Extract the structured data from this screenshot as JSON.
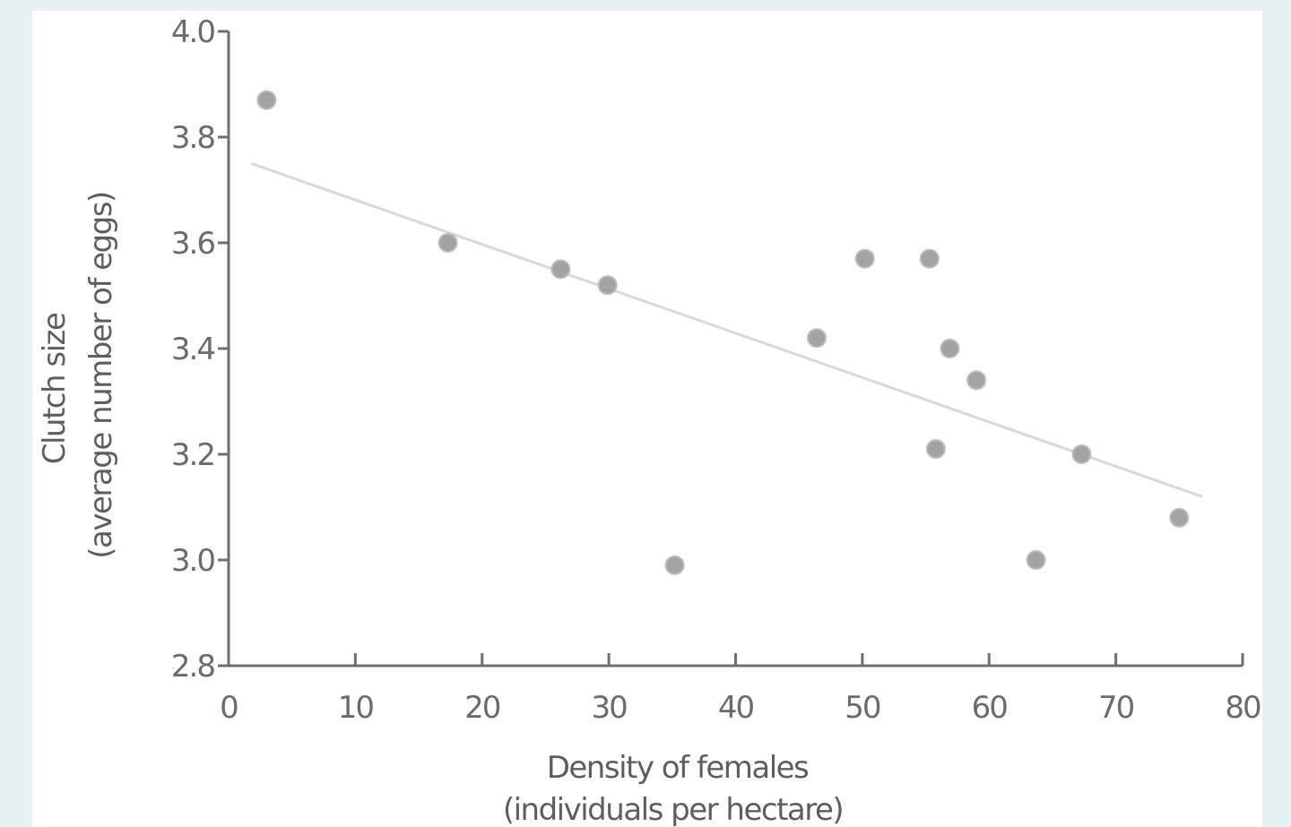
{
  "chart_data": {
    "type": "scatter",
    "title": "",
    "xlabel": [
      "Density of females",
      "(individuals per hectare)"
    ],
    "ylabel": [
      "Clutch size",
      "(average number of eggs)"
    ],
    "xlim": [
      0,
      80
    ],
    "ylim": [
      2.8,
      4.0
    ],
    "x_ticks": [
      0,
      10,
      20,
      30,
      40,
      50,
      60,
      70,
      80
    ],
    "y_ticks": [
      2.8,
      3.0,
      3.2,
      3.4,
      3.6,
      3.8,
      4.0
    ],
    "x_tick_labels": [
      "0",
      "10",
      "20",
      "30",
      "40",
      "50",
      "60",
      "70",
      "80"
    ],
    "y_tick_labels": [
      "2.8",
      "3.0",
      "3.2",
      "3.4",
      "3.6",
      "3.8",
      "4.0"
    ],
    "grid": false,
    "points": [
      {
        "x": 3,
        "y": 3.87
      },
      {
        "x": 17.3,
        "y": 3.6
      },
      {
        "x": 26.2,
        "y": 3.55
      },
      {
        "x": 29.9,
        "y": 3.52
      },
      {
        "x": 35.2,
        "y": 2.99
      },
      {
        "x": 46.4,
        "y": 3.42
      },
      {
        "x": 50.2,
        "y": 3.57
      },
      {
        "x": 55.3,
        "y": 3.57
      },
      {
        "x": 55.8,
        "y": 3.21
      },
      {
        "x": 56.9,
        "y": 3.4
      },
      {
        "x": 59.0,
        "y": 3.34
      },
      {
        "x": 63.7,
        "y": 3.0
      },
      {
        "x": 67.3,
        "y": 3.2
      },
      {
        "x": 75.0,
        "y": 3.08
      }
    ],
    "trendline": {
      "x": [
        1.8,
        76.8
      ],
      "y": [
        3.75,
        3.12
      ]
    },
    "colors": {
      "points": "#a3a3a3",
      "trendline": "#d9d9d9",
      "axes": "#6f6f6f"
    }
  }
}
